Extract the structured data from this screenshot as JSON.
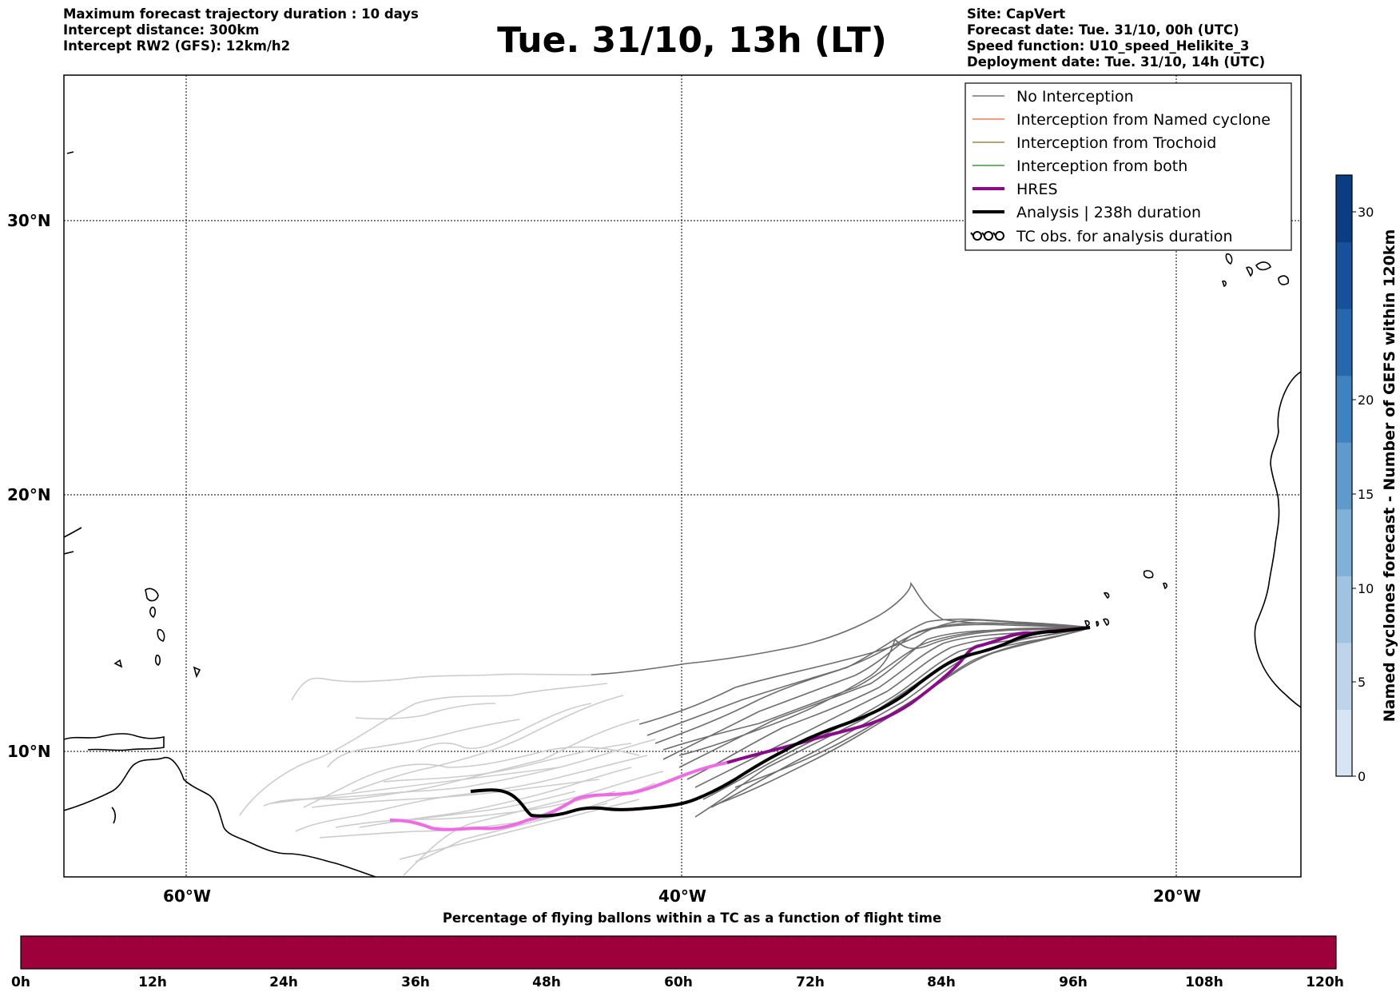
{
  "header": {
    "left": [
      "Maximum forecast trajectory duration : 10 days",
      "Intercept distance: 300km",
      "Intercept RW2 (GFS):  12km/h2"
    ],
    "title": "Tue. 31/10, 13h (LT)",
    "right": [
      "Site: CapVert",
      "Forecast date: Tue. 31/10, 00h (UTC)",
      "Speed function: U10_speed_Helikite_3",
      "Deployment date: Tue. 31/10, 14h (UTC)"
    ]
  },
  "map": {
    "lat_labels": [
      "30°N",
      "20°N",
      "10°N"
    ],
    "lon_labels": [
      "60°W",
      "40°W",
      "20°W"
    ],
    "grid": "dotted"
  },
  "legend": {
    "items": [
      {
        "label": "No Interception",
        "color": "#777777",
        "style": "thin"
      },
      {
        "label": "Interception from Named cyclone",
        "color": "#f07b4e",
        "style": "thin"
      },
      {
        "label": "Interception from Trochoid",
        "color": "#9a8a3a",
        "style": "thin"
      },
      {
        "label": "Interception from both",
        "color": "#3a9a3a",
        "style": "thin"
      },
      {
        "label": "HRES",
        "color": "#8b0a8b",
        "style": "thick"
      },
      {
        "label": "Analysis | 238h duration",
        "color": "#000000",
        "style": "thick"
      },
      {
        "label": "TC obs. for analysis duration",
        "color": "#000000",
        "style": "symbol"
      }
    ]
  },
  "colorbar_right": {
    "label": "Named cyclones forecast - Number of GEFS within 120km",
    "ticks": [
      "0",
      "5",
      "10",
      "15",
      "20",
      "30"
    ],
    "colors": [
      "#d6e4f3",
      "#bdd4ea",
      "#a0c3e2",
      "#7fb1d9",
      "#5e9acc",
      "#3f82c0",
      "#2767ae",
      "#17509b",
      "#0b3d82"
    ]
  },
  "colorbar_bottom": {
    "title": "Percentage of flying ballons within a TC as a function of flight time",
    "ticks": [
      "0h",
      "12h",
      "24h",
      "36h",
      "48h",
      "60h",
      "72h",
      "84h",
      "96h",
      "108h",
      "120h"
    ],
    "color": "#9d003b"
  }
}
